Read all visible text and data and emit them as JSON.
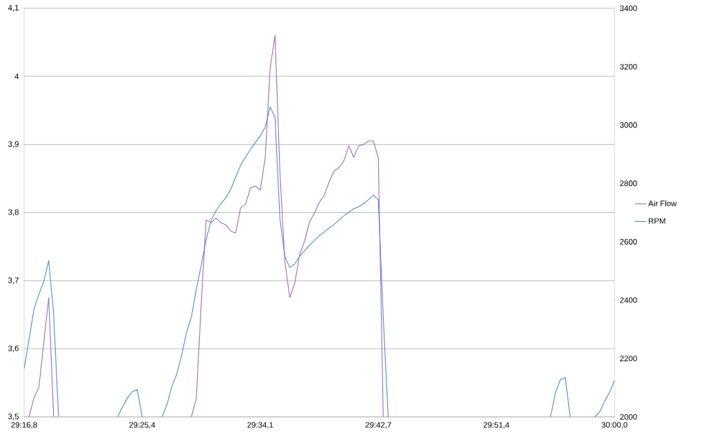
{
  "chart_data": {
    "type": "line",
    "categories": [
      "29:16,8",
      null,
      null,
      null,
      null,
      null,
      null,
      null,
      null,
      null,
      null,
      null,
      null,
      null,
      null,
      null,
      null,
      null,
      null,
      null,
      null,
      null,
      null,
      null,
      "29:25,4",
      null,
      null,
      null,
      null,
      null,
      null,
      null,
      null,
      null,
      null,
      null,
      null,
      null,
      null,
      null,
      null,
      null,
      null,
      null,
      null,
      null,
      null,
      null,
      "29:34,1",
      null,
      null,
      null,
      null,
      null,
      null,
      null,
      null,
      null,
      null,
      null,
      null,
      null,
      null,
      null,
      null,
      null,
      null,
      null,
      null,
      null,
      null,
      null,
      "29:42,7",
      null,
      null,
      null,
      null,
      null,
      null,
      null,
      null,
      null,
      null,
      null,
      null,
      null,
      null,
      null,
      null,
      null,
      null,
      null,
      null,
      null,
      null,
      null,
      "29:51,4",
      null,
      null,
      null,
      null,
      null,
      null,
      null,
      null,
      null,
      null,
      null,
      null,
      null,
      null,
      null,
      null,
      null,
      null,
      null,
      null,
      null,
      null,
      null,
      "30:00,0"
    ],
    "ylim": [
      3.5,
      4.1
    ],
    "yticks": [
      {
        "value": 3.5,
        "label": "3,5"
      },
      {
        "value": 3.6,
        "label": "3,6"
      },
      {
        "value": 3.7,
        "label": "3,7"
      },
      {
        "value": 3.8,
        "label": "3,8"
      },
      {
        "value": 3.9,
        "label": "3,9"
      },
      4,
      {
        "value": 4.1,
        "label": "4,1"
      }
    ],
    "y2lim": [
      2000,
      3400
    ],
    "y2ticks": [
      2000,
      2200,
      2400,
      2600,
      2800,
      3000,
      3200,
      3400
    ],
    "grid": "y",
    "legend": "right",
    "series": [
      {
        "name": "Air Flow",
        "color": "#9b6bb8",
        "values": [
          null,
          3.5,
          3.528,
          3.543,
          3.609,
          3.675,
          3.5,
          null,
          null,
          null,
          null,
          null,
          null,
          null,
          null,
          null,
          null,
          null,
          null,
          null,
          null,
          null,
          null,
          null,
          null,
          null,
          null,
          null,
          null,
          null,
          null,
          null,
          null,
          null,
          3.5,
          3.527,
          3.666,
          3.789,
          3.785,
          3.792,
          3.785,
          3.782,
          3.773,
          3.77,
          3.807,
          3.812,
          3.836,
          3.839,
          3.833,
          3.88,
          4.011,
          4.06,
          3.859,
          3.728,
          3.675,
          3.696,
          3.738,
          3.758,
          3.786,
          3.799,
          3.815,
          3.825,
          3.845,
          3.861,
          3.866,
          3.876,
          3.898,
          3.881,
          3.898,
          3.9,
          3.905,
          3.905,
          3.88,
          3.5,
          null,
          null,
          null,
          null,
          null,
          null,
          null,
          null,
          null,
          null,
          null,
          null,
          null,
          null,
          null,
          null,
          null,
          null,
          null,
          null,
          null,
          null,
          null,
          null,
          null,
          null,
          null,
          null,
          null,
          null,
          null,
          null,
          null,
          null,
          null,
          null,
          null,
          null,
          null,
          null,
          null,
          null,
          null,
          null,
          null,
          null,
          null
        ]
      },
      {
        "name": "RPM",
        "color": "#4a8bcf",
        "axis": "y2",
        "values": [
          2165,
          2264,
          2368,
          2420,
          2465,
          2535,
          2354,
          2000,
          null,
          null,
          null,
          null,
          null,
          null,
          null,
          null,
          null,
          null,
          null,
          2000,
          2035,
          2064,
          2087,
          2094,
          2000,
          null,
          null,
          null,
          2000,
          2040,
          2103,
          2145,
          2210,
          2288,
          2342,
          2437,
          2519,
          2607,
          2673,
          2706,
          2730,
          2751,
          2779,
          2822,
          2862,
          2890,
          2916,
          2940,
          2963,
          2992,
          3062,
          3027,
          2678,
          2550,
          2512,
          2524,
          2550,
          2569,
          2588,
          2604,
          2621,
          2633,
          2647,
          2659,
          2675,
          2689,
          2701,
          2713,
          2720,
          2730,
          2744,
          2760,
          2744,
          2342,
          2000,
          null,
          null,
          null,
          null,
          null,
          null,
          null,
          null,
          null,
          null,
          null,
          null,
          null,
          null,
          null,
          null,
          null,
          null,
          null,
          null,
          null,
          null,
          null,
          null,
          null,
          null,
          null,
          null,
          null,
          null,
          null,
          null,
          2000,
          2083,
          2127,
          2135,
          2000,
          null,
          null,
          null,
          null,
          2000,
          2017,
          2054,
          2083,
          2125
        ]
      }
    ]
  }
}
